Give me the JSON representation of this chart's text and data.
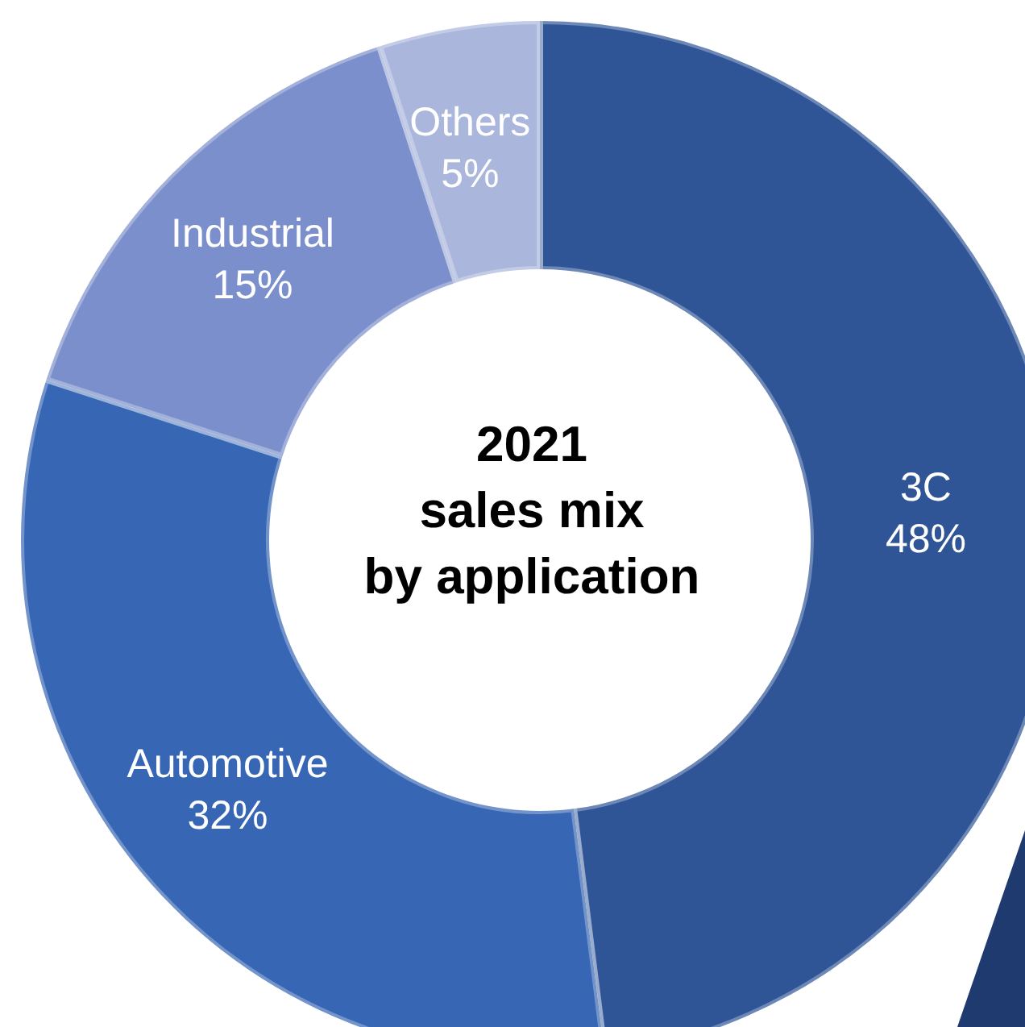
{
  "chart_data": {
    "type": "donut",
    "title": "2021\nsales mix\nby application",
    "categories": [
      "3C",
      "Automotive",
      "Industrial",
      "Others"
    ],
    "values": [
      48,
      32,
      15,
      5
    ],
    "value_labels": [
      "48%",
      "32%",
      "15%",
      "5%"
    ],
    "colors": [
      "#2f5597",
      "#3766b5",
      "#7a8fcb",
      "#aab6dc"
    ]
  }
}
